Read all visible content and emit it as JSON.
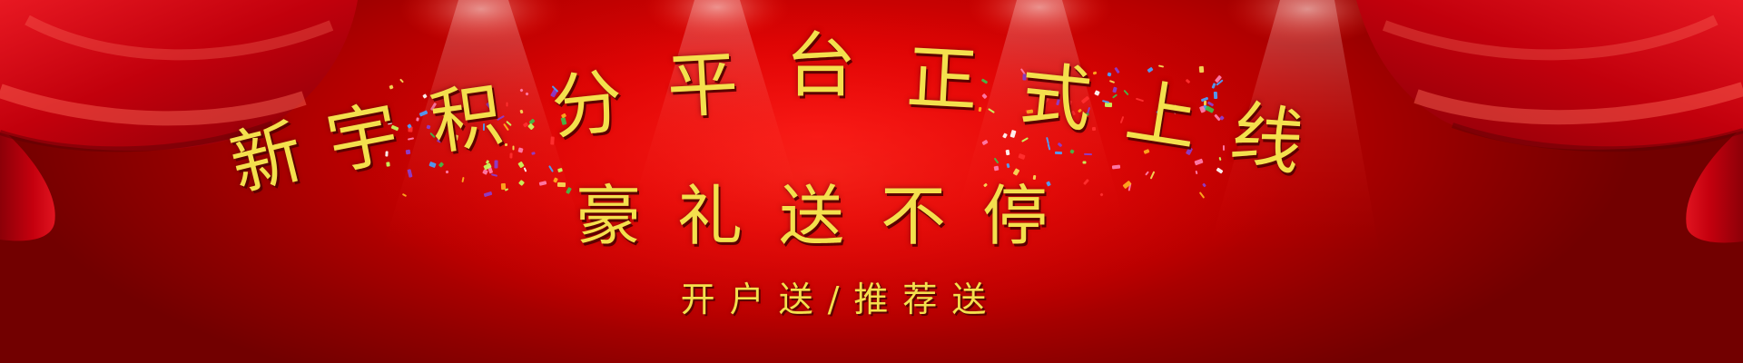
{
  "banner": {
    "title": "新宇积分平台 正式上线",
    "subtitle": "豪礼送不停",
    "tagline": "开户送/推荐送"
  },
  "colors": {
    "text": "#f4e04d",
    "text_shadow": "#5c0000",
    "background_center": "#ee0a0a",
    "background_edge": "#7a0000",
    "curtain": "#c8000c"
  }
}
